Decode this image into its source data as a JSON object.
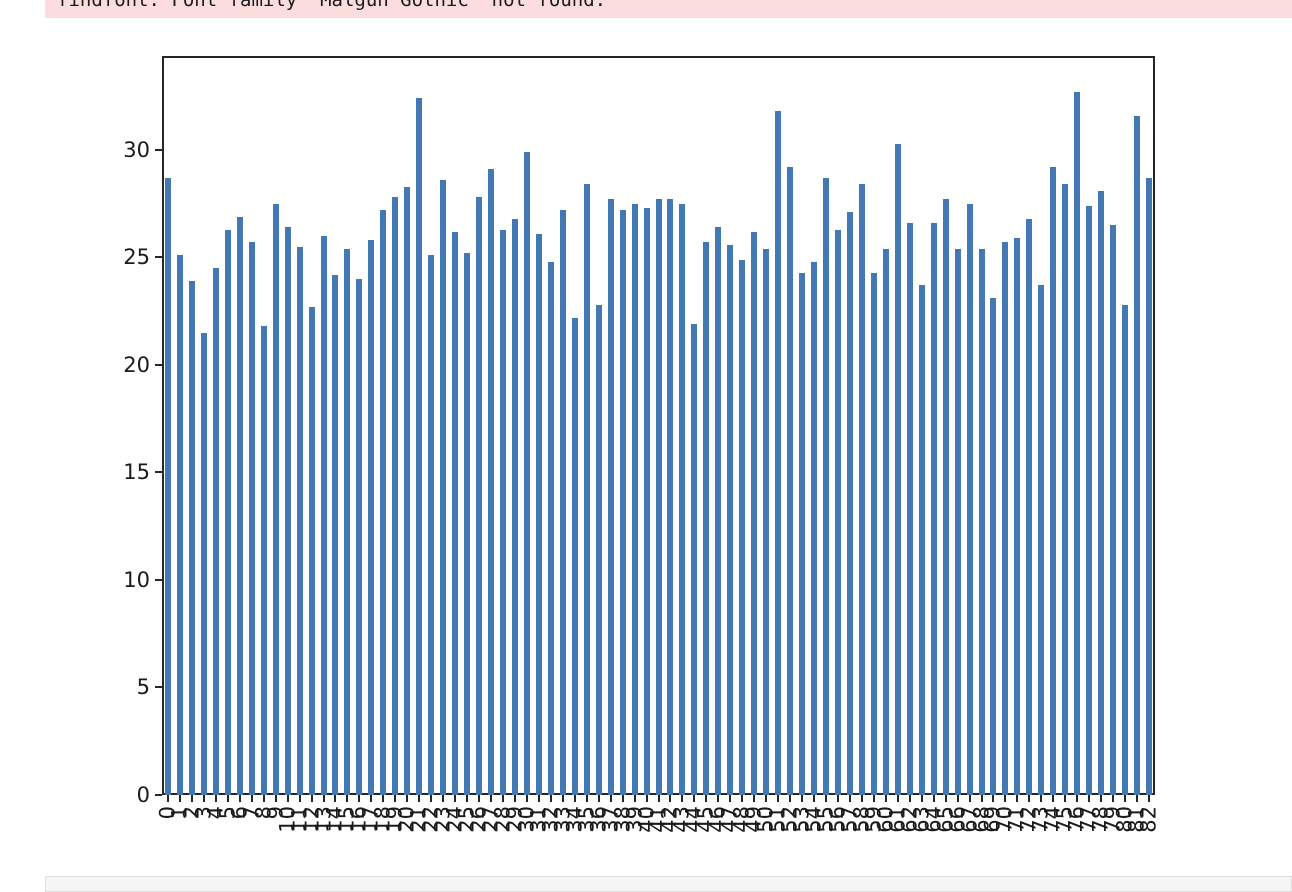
{
  "stderr": {
    "text": "findfont: Font family 'Malgun Gothic' not found."
  },
  "chart_data": {
    "type": "bar",
    "title": "",
    "xlabel": "",
    "ylabel": "",
    "categories": [
      "0",
      "1",
      "2",
      "3",
      "4",
      "5",
      "6",
      "7",
      "8",
      "9",
      "10",
      "11",
      "12",
      "13",
      "14",
      "15",
      "16",
      "17",
      "18",
      "19",
      "20",
      "21",
      "22",
      "23",
      "24",
      "25",
      "26",
      "27",
      "28",
      "29",
      "30",
      "31",
      "32",
      "33",
      "34",
      "35",
      "36",
      "37",
      "38",
      "39",
      "40",
      "41",
      "42",
      "43",
      "44",
      "45",
      "46",
      "47",
      "48",
      "49",
      "50",
      "51",
      "52",
      "53",
      "54",
      "55",
      "56",
      "57",
      "58",
      "59",
      "60",
      "61",
      "62",
      "63",
      "64",
      "65",
      "66",
      "67",
      "68",
      "69",
      "70",
      "71",
      "72",
      "73",
      "74",
      "75",
      "76",
      "77",
      "78",
      "79",
      "80",
      "81",
      "82"
    ],
    "values": [
      28.7,
      25.1,
      23.9,
      21.5,
      24.5,
      26.3,
      26.9,
      25.7,
      21.8,
      27.5,
      26.4,
      25.5,
      22.7,
      26.0,
      24.2,
      25.4,
      24.0,
      25.8,
      27.2,
      27.8,
      28.3,
      32.4,
      25.1,
      28.6,
      26.2,
      25.2,
      27.8,
      29.1,
      26.3,
      26.8,
      29.9,
      26.1,
      24.8,
      27.2,
      22.2,
      28.4,
      22.8,
      27.7,
      27.2,
      27.5,
      27.3,
      27.7,
      27.7,
      27.5,
      21.9,
      25.7,
      26.4,
      25.6,
      24.9,
      26.2,
      25.4,
      31.8,
      29.2,
      24.3,
      24.8,
      28.7,
      26.3,
      27.1,
      28.4,
      24.3,
      25.4,
      30.3,
      26.6,
      23.7,
      26.6,
      27.7,
      25.4,
      27.5,
      25.4,
      23.1,
      25.7,
      25.9,
      26.8,
      23.7,
      29.2,
      28.4,
      32.7,
      27.4,
      28.1,
      26.5,
      22.8,
      31.6,
      28.7
    ],
    "yticks": [
      0,
      5,
      10,
      15,
      20,
      25,
      30
    ],
    "ylim": [
      0,
      34.37
    ],
    "xtick_rotation": 90,
    "bar_color": "#4379b2",
    "grid": false,
    "legend": null
  },
  "next_cell": {
    "content": ""
  }
}
